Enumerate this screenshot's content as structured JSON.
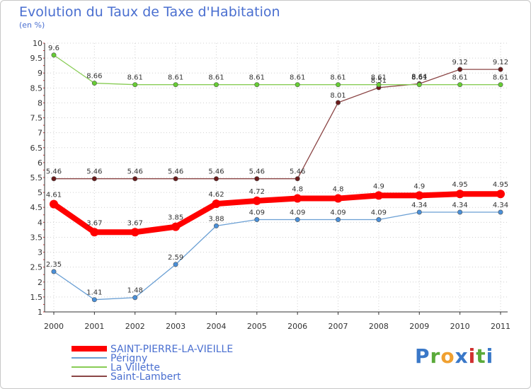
{
  "chart_data": {
    "type": "line",
    "title": "Evolution du Taux de Taxe d'Habitation",
    "unit_label": "(en %)",
    "xlabel": "",
    "ylabel": "(en %)",
    "categories": [
      "2000",
      "2001",
      "2002",
      "2003",
      "2004",
      "2005",
      "2006",
      "2007",
      "2008",
      "2009",
      "2010",
      "2011"
    ],
    "ylim": [
      1,
      10
    ],
    "yticks": [
      1,
      1.5,
      2,
      2.5,
      3,
      3.5,
      4,
      4.5,
      5,
      5.5,
      6,
      6.5,
      7,
      7.5,
      8,
      8.5,
      9,
      9.5,
      10
    ],
    "grid": true,
    "legend_position": "bottom-left",
    "series": [
      {
        "name": "SAINT-PIERRE-LA-VIEILLE",
        "color": "#ff0000",
        "marker_color": "#ff0000",
        "values": [
          4.61,
          3.67,
          3.67,
          3.85,
          4.62,
          4.72,
          4.8,
          4.8,
          4.9,
          4.9,
          4.95,
          4.95
        ],
        "labels": [
          "4.61",
          "3.67",
          "3.67",
          "3.85",
          "4.62",
          "4.72",
          "4.8",
          "4.8",
          "4.9",
          "4.9",
          "4.95",
          "4.95"
        ]
      },
      {
        "name": "Périgny",
        "color": "#6a9fd4",
        "marker_color": "#4a90d9",
        "values": [
          2.35,
          1.41,
          1.48,
          2.59,
          3.88,
          4.09,
          4.09,
          4.09,
          4.09,
          4.34,
          4.34,
          4.34
        ],
        "labels": [
          "2.35",
          "1.41",
          "1.48",
          "2.59",
          "3.88",
          "4.09",
          "4.09",
          "4.09",
          "4.09",
          "4.34",
          "4.34",
          "4.34"
        ]
      },
      {
        "name": "La Villette",
        "color": "#88cc55",
        "marker_color": "#66cc33",
        "values": [
          9.6,
          8.66,
          8.61,
          8.61,
          8.61,
          8.61,
          8.61,
          8.61,
          8.61,
          8.61,
          8.61,
          8.61
        ],
        "labels": [
          "9.6",
          "8.66",
          "8.61",
          "8.61",
          "8.61",
          "8.61",
          "8.61",
          "8.61",
          "8.61",
          "8.61",
          "8.61",
          "8.61"
        ]
      },
      {
        "name": "Saint-Lambert",
        "color": "#8b4545",
        "marker_color": "#6b1a1a",
        "values": [
          5.46,
          5.46,
          5.46,
          5.46,
          5.46,
          5.46,
          5.46,
          8.01,
          8.51,
          8.64,
          9.12,
          9.12
        ],
        "labels": [
          "5.46",
          "5.46",
          "5.46",
          "5.46",
          "5.46",
          "5.46",
          "5.46",
          "8.01",
          "8.51",
          "8.64",
          "9.12",
          "9.12"
        ]
      }
    ]
  },
  "branding": {
    "logo_letters": [
      "P",
      "r",
      "o",
      "x",
      "i",
      "t",
      "i"
    ],
    "logo_colors": [
      "#3a78c8",
      "#5aaa3a",
      "#f0a030",
      "#3a78c8",
      "#d03030",
      "#5aaa3a",
      "#3a78c8"
    ]
  }
}
